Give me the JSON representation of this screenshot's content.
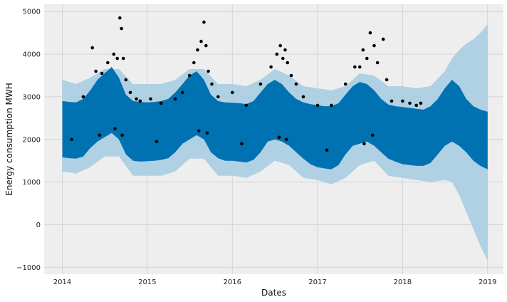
{
  "chart_data": {
    "type": "scatter",
    "title": "",
    "xlabel": "Dates",
    "ylabel": "Energy consumption MWH",
    "xlim": [
      "2013-10-15",
      "2019-03-10"
    ],
    "ylim": [
      -1160,
      5170
    ],
    "x_ticks": [
      "2014",
      "2015",
      "2016",
      "2017",
      "2018",
      "2019"
    ],
    "y_ticks": [
      -1000,
      0,
      1000,
      2000,
      3000,
      4000,
      5000
    ],
    "grid": true,
    "background": "#eeeeee",
    "colors": {
      "forecast_band": "#0072B2",
      "uncertainty_band": "#a8cde2",
      "observed_points": "#000000",
      "grid": "#d4d4d4"
    },
    "series": [
      {
        "kind": "forecast_range",
        "x": [
          "2014-01-01",
          "2014-02-01",
          "2014-03-01",
          "2014-04-01",
          "2014-05-01",
          "2014-06-01",
          "2014-07-01",
          "2014-08-01",
          "2014-09-01",
          "2014-10-01",
          "2014-11-01",
          "2014-12-01",
          "2015-01-01",
          "2015-02-01",
          "2015-03-01",
          "2015-04-01",
          "2015-05-01",
          "2015-06-01",
          "2015-07-01",
          "2015-08-01",
          "2015-09-01",
          "2015-10-01",
          "2015-11-01",
          "2015-12-01",
          "2016-01-01",
          "2016-02-01",
          "2016-03-01",
          "2016-04-01",
          "2016-05-01",
          "2016-06-01",
          "2016-07-01",
          "2016-08-01",
          "2016-09-01",
          "2016-10-01",
          "2016-11-01",
          "2016-12-01",
          "2017-01-01",
          "2017-02-01",
          "2017-03-01",
          "2017-04-01",
          "2017-05-01",
          "2017-06-01",
          "2017-07-01",
          "2017-08-01",
          "2017-09-01",
          "2017-10-01",
          "2017-11-01",
          "2017-12-01",
          "2018-01-01",
          "2018-02-01",
          "2018-03-01",
          "2018-04-01",
          "2018-05-01",
          "2018-06-01",
          "2018-07-01",
          "2018-08-01",
          "2018-09-01",
          "2018-10-01",
          "2018-11-01",
          "2018-12-01",
          "2019-01-01"
        ],
        "lower": [
          1580,
          1560,
          1550,
          1600,
          1800,
          1950,
          2050,
          2150,
          2000,
          1650,
          1500,
          1480,
          1490,
          1500,
          1520,
          1560,
          1700,
          1900,
          2000,
          2100,
          2000,
          1700,
          1560,
          1500,
          1500,
          1480,
          1460,
          1520,
          1700,
          1950,
          2000,
          1950,
          1850,
          1700,
          1550,
          1420,
          1350,
          1320,
          1300,
          1400,
          1650,
          1850,
          1900,
          1950,
          1850,
          1700,
          1550,
          1480,
          1420,
          1400,
          1380,
          1380,
          1450,
          1650,
          1850,
          1950,
          1850,
          1700,
          1500,
          1380,
          1300
        ],
        "upper": [
          2900,
          2880,
          2870,
          2950,
          3150,
          3400,
          3550,
          3700,
          3450,
          3050,
          2900,
          2880,
          2870,
          2880,
          2900,
          2950,
          3100,
          3300,
          3500,
          3600,
          3400,
          3050,
          2900,
          2870,
          2860,
          2850,
          2830,
          2900,
          3100,
          3300,
          3400,
          3300,
          3100,
          2950,
          2870,
          2830,
          2800,
          2780,
          2780,
          2850,
          3050,
          3250,
          3350,
          3300,
          3150,
          2950,
          2820,
          2780,
          2760,
          2740,
          2720,
          2700,
          2780,
          2950,
          3200,
          3400,
          3250,
          2950,
          2780,
          2700,
          2650
        ]
      },
      {
        "kind": "uncertainty_interval",
        "x": [
          "2014-01-01",
          "2014-03-01",
          "2014-05-01",
          "2014-07-01",
          "2014-09-01",
          "2014-11-01",
          "2015-01-01",
          "2015-03-01",
          "2015-05-01",
          "2015-07-01",
          "2015-09-01",
          "2015-11-01",
          "2016-01-01",
          "2016-03-01",
          "2016-05-01",
          "2016-07-01",
          "2016-09-01",
          "2016-11-01",
          "2017-01-01",
          "2017-03-01",
          "2017-05-01",
          "2017-07-01",
          "2017-09-01",
          "2017-11-01",
          "2018-01-01",
          "2018-03-01",
          "2018-05-01",
          "2018-07-01",
          "2018-08-01",
          "2018-09-01",
          "2018-10-01",
          "2018-11-01",
          "2018-12-01",
          "2019-01-01"
        ],
        "lower": [
          1250,
          1200,
          1350,
          1600,
          1600,
          1150,
          1150,
          1150,
          1250,
          1550,
          1550,
          1150,
          1150,
          1100,
          1250,
          1500,
          1400,
          1100,
          1050,
          950,
          1100,
          1400,
          1500,
          1150,
          1100,
          1050,
          1000,
          1050,
          1000,
          700,
          300,
          -100,
          -500,
          -850
        ],
        "upper": [
          3400,
          3300,
          3450,
          3650,
          3650,
          3300,
          3300,
          3300,
          3400,
          3650,
          3650,
          3300,
          3300,
          3250,
          3400,
          3650,
          3500,
          3250,
          3200,
          3150,
          3250,
          3550,
          3500,
          3250,
          3250,
          3200,
          3250,
          3600,
          3900,
          4100,
          4250,
          4350,
          4500,
          4700
        ]
      },
      {
        "kind": "observed",
        "x": [
          "2014-04-01",
          "2014-05-10",
          "2014-05-25",
          "2014-06-20",
          "2014-07-15",
          "2014-08-10",
          "2014-08-25",
          "2014-09-05",
          "2014-09-12",
          "2014-09-20",
          "2014-10-01",
          "2014-10-20",
          "2014-11-15",
          "2014-12-01",
          "2015-01-15",
          "2015-03-01",
          "2015-05-01",
          "2015-06-01",
          "2015-07-01",
          "2015-07-20",
          "2015-08-05",
          "2015-08-20",
          "2015-09-01",
          "2015-09-10",
          "2015-09-20",
          "2015-10-05",
          "2015-11-01",
          "2016-01-01",
          "2016-03-01",
          "2016-05-01",
          "2016-06-15",
          "2016-07-10",
          "2016-07-25",
          "2016-08-05",
          "2016-08-15",
          "2016-08-25",
          "2016-09-10",
          "2016-10-01",
          "2016-11-01",
          "2017-01-01",
          "2017-03-01",
          "2017-05-01",
          "2017-06-10",
          "2017-07-01",
          "2017-07-15",
          "2017-08-01",
          "2017-08-15",
          "2017-09-01",
          "2017-09-15",
          "2017-10-10",
          "2017-10-25",
          "2017-11-15",
          "2018-01-01",
          "2018-02-01",
          "2018-03-01",
          "2018-03-20",
          "2014-02-10",
          "2014-06-10",
          "2014-08-15",
          "2014-09-15",
          "2015-02-10",
          "2015-08-10",
          "2015-09-15",
          "2016-02-10",
          "2016-07-20",
          "2016-08-20",
          "2017-02-10",
          "2017-07-20",
          "2017-08-25"
        ],
        "y": [
          3000,
          4150,
          3600,
          3550,
          3800,
          4000,
          3900,
          4850,
          4600,
          3900,
          3400,
          3100,
          2950,
          2900,
          2950,
          2850,
          2950,
          3100,
          3500,
          3800,
          4100,
          4300,
          4750,
          4200,
          3600,
          3300,
          3000,
          3100,
          2800,
          3300,
          3700,
          4000,
          4200,
          3900,
          4100,
          3800,
          3500,
          3300,
          3000,
          2800,
          2800,
          3300,
          3700,
          3700,
          4100,
          3900,
          4500,
          4200,
          3800,
          4350,
          3400,
          2900,
          2900,
          2850,
          2800,
          2850,
          2000,
          2100,
          2250,
          2100,
          1950,
          2200,
          2150,
          1900,
          2050,
          2000,
          1750,
          1900,
          2100
        ]
      }
    ]
  }
}
